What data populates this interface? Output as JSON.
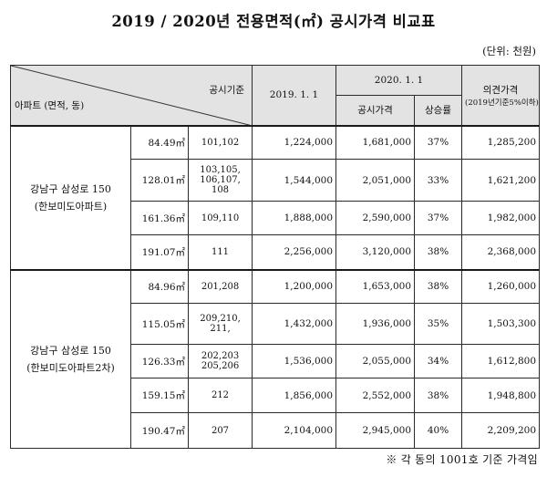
{
  "title": "2019 / 2020년 전용면적(㎡) 공시가격 비교표",
  "unit": "(단위: 천원)",
  "header": {
    "corner_top": "공시기준",
    "corner_bottom": "아파트 (면적, 동)",
    "col_2019": "2019. 1. 1",
    "col_2020": "2020. 1. 1",
    "col_price": "공시가격",
    "col_rate": "상승률",
    "col_opinion": "의견가격",
    "col_opinion_sub": "(2019년기준5%이하)"
  },
  "groups": [
    {
      "address": "강남구 삼성로 150",
      "complex": "(한보미도아파트)",
      "rows": [
        {
          "area": "84.49㎡",
          "dong": "101,102",
          "p2019": "1,224,000",
          "p2020": "1,681,000",
          "rate": "37%",
          "opinion": "1,285,200"
        },
        {
          "area": "128.01㎡",
          "dong": "103,105,\n106,107,\n108",
          "p2019": "1,544,000",
          "p2020": "2,051,000",
          "rate": "33%",
          "opinion": "1,621,200"
        },
        {
          "area": "161.36㎡",
          "dong": "109,110",
          "p2019": "1,888,000",
          "p2020": "2,590,000",
          "rate": "37%",
          "opinion": "1,982,000"
        },
        {
          "area": "191.07㎡",
          "dong": "111",
          "p2019": "2,256,000",
          "p2020": "3,120,000",
          "rate": "38%",
          "opinion": "2,368,000"
        }
      ]
    },
    {
      "address": "강남구 삼성로 150",
      "complex": "(한보미도아파트2차)",
      "rows": [
        {
          "area": "84.96㎡",
          "dong": "201,208",
          "p2019": "1,200,000",
          "p2020": "1,653,000",
          "rate": "38%",
          "opinion": "1,260,000"
        },
        {
          "area": "115.05㎡",
          "dong": "209,210,\n211,",
          "p2019": "1,432,000",
          "p2020": "1,936,000",
          "rate": "35%",
          "opinion": "1,503,300"
        },
        {
          "area": "126.33㎡",
          "dong": "202,203\n205,206",
          "p2019": "1,536,000",
          "p2020": "2,055,000",
          "rate": "34%",
          "opinion": "1,612,800"
        },
        {
          "area": "159.15㎡",
          "dong": "212",
          "p2019": "1,856,000",
          "p2020": "2,552,000",
          "rate": "38%",
          "opinion": "1,948,800"
        },
        {
          "area": "190.47㎡",
          "dong": "207",
          "p2019": "2,104,000",
          "p2020": "2,945,000",
          "rate": "40%",
          "opinion": "2,209,200"
        }
      ]
    }
  ],
  "footnote": "※ 각 동의 1001호 기준 가격임"
}
